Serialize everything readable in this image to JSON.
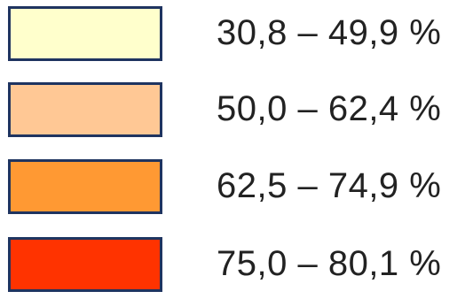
{
  "legend": {
    "items": [
      {
        "label": "30,8 – 49,9 %",
        "color": "#ffffcc"
      },
      {
        "label": "50,0 – 62,4 %",
        "color": "#ffc895"
      },
      {
        "label": "62,5 – 74,9 %",
        "color": "#ff9933"
      },
      {
        "label": "75,0 – 80,1 %",
        "color": "#ff3300"
      }
    ]
  }
}
